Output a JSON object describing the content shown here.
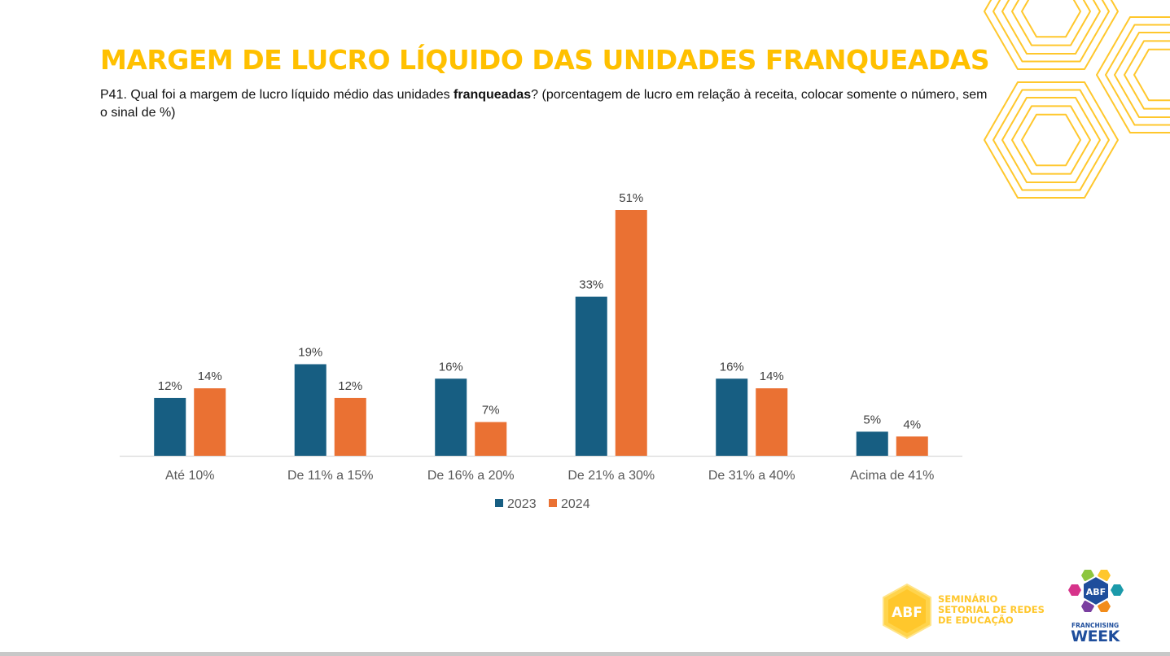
{
  "slide": {
    "title": "MARGEM DE LUCRO LÍQUIDO DAS UNIDADES FRANQUEADAS",
    "question_prefix": "P41. Qual foi a margem de lucro líquido médio das unidades ",
    "question_bold": "franqueadas",
    "question_suffix": "? (porcentagem de lucro em relação à receita, colocar somente o número, sem o sinal de %)"
  },
  "logos": {
    "seminario_badge": "ABF",
    "seminario_text": [
      "SEMINÁRIO",
      "SETORIAL DE REDES",
      "DE EDUCAÇÃO"
    ],
    "franchising_badge": "ABF",
    "franchising_line1": "FRANCHISING",
    "franchising_line2": "WEEK"
  },
  "colors": {
    "title": "#FFC000",
    "series_2023": "#175E82",
    "series_2024": "#EA7133",
    "decoration": "#FFC72C"
  },
  "chart_data": {
    "type": "bar",
    "title": "",
    "xlabel": "",
    "ylabel": "",
    "ylim": [
      0,
      55
    ],
    "grid": false,
    "legend": "bottom",
    "value_suffix": "%",
    "categories": [
      "Até 10%",
      "De 11% a 15%",
      "De 16% a 20%",
      "De 21% a 30%",
      "De 31% a 40%",
      "Acima de 41%"
    ],
    "series": [
      {
        "name": "2023",
        "color": "#175E82",
        "values": [
          12,
          19,
          16,
          33,
          16,
          5
        ]
      },
      {
        "name": "2024",
        "color": "#EA7133",
        "values": [
          14,
          12,
          7,
          51,
          14,
          4
        ]
      }
    ]
  }
}
